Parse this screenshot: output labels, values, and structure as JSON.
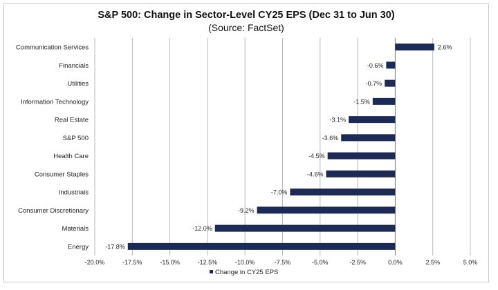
{
  "chart_data": {
    "type": "bar",
    "orientation": "horizontal",
    "title": "S&P 500: Change in Sector-Level CY25 EPS (Dec 31 to Jun 30)",
    "subtitle": "(Source: FactSet)",
    "categories": [
      "Communication Services",
      "Financials",
      "Utilities",
      "Information Technology",
      "Real Estate",
      "S&P 500",
      "Health Care",
      "Consumer Staples",
      "Industrials",
      "Consumer Discretionary",
      "Materials",
      "Energy"
    ],
    "series": [
      {
        "name": "Change in CY25 EPS",
        "values": [
          2.6,
          -0.6,
          -0.7,
          -1.5,
          -3.1,
          -3.6,
          -4.5,
          -4.6,
          -7.0,
          -9.2,
          -12.0,
          -17.8
        ],
        "data_labels": [
          "2.6%",
          "-0.6%",
          "-0.7%",
          "-1.5%",
          "-3.1%",
          "-3.6%",
          "-4.5%",
          "-4.6%",
          "-7.0%",
          "-9.2%",
          "-12.0%",
          "-17.8%"
        ]
      }
    ],
    "xlim": [
      -20.0,
      5.0
    ],
    "x_ticks": [
      -20.0,
      -17.5,
      -15.0,
      -12.5,
      -10.0,
      -7.5,
      -5.0,
      -2.5,
      0.0,
      2.5,
      5.0
    ],
    "x_tick_labels": [
      "-20.0%",
      "-17.5%",
      "-15.0%",
      "-12.5%",
      "-10.0%",
      "-7.5%",
      "-5.0%",
      "-2.5%",
      "0.0%",
      "2.5%",
      "5.0%"
    ],
    "xlabel": "",
    "ylabel": "",
    "grid": "vertical",
    "legend": "bottom-center",
    "colors": {
      "bar": "#1c2b56",
      "grid": "#b8b8b8",
      "axis": "#808080"
    }
  }
}
